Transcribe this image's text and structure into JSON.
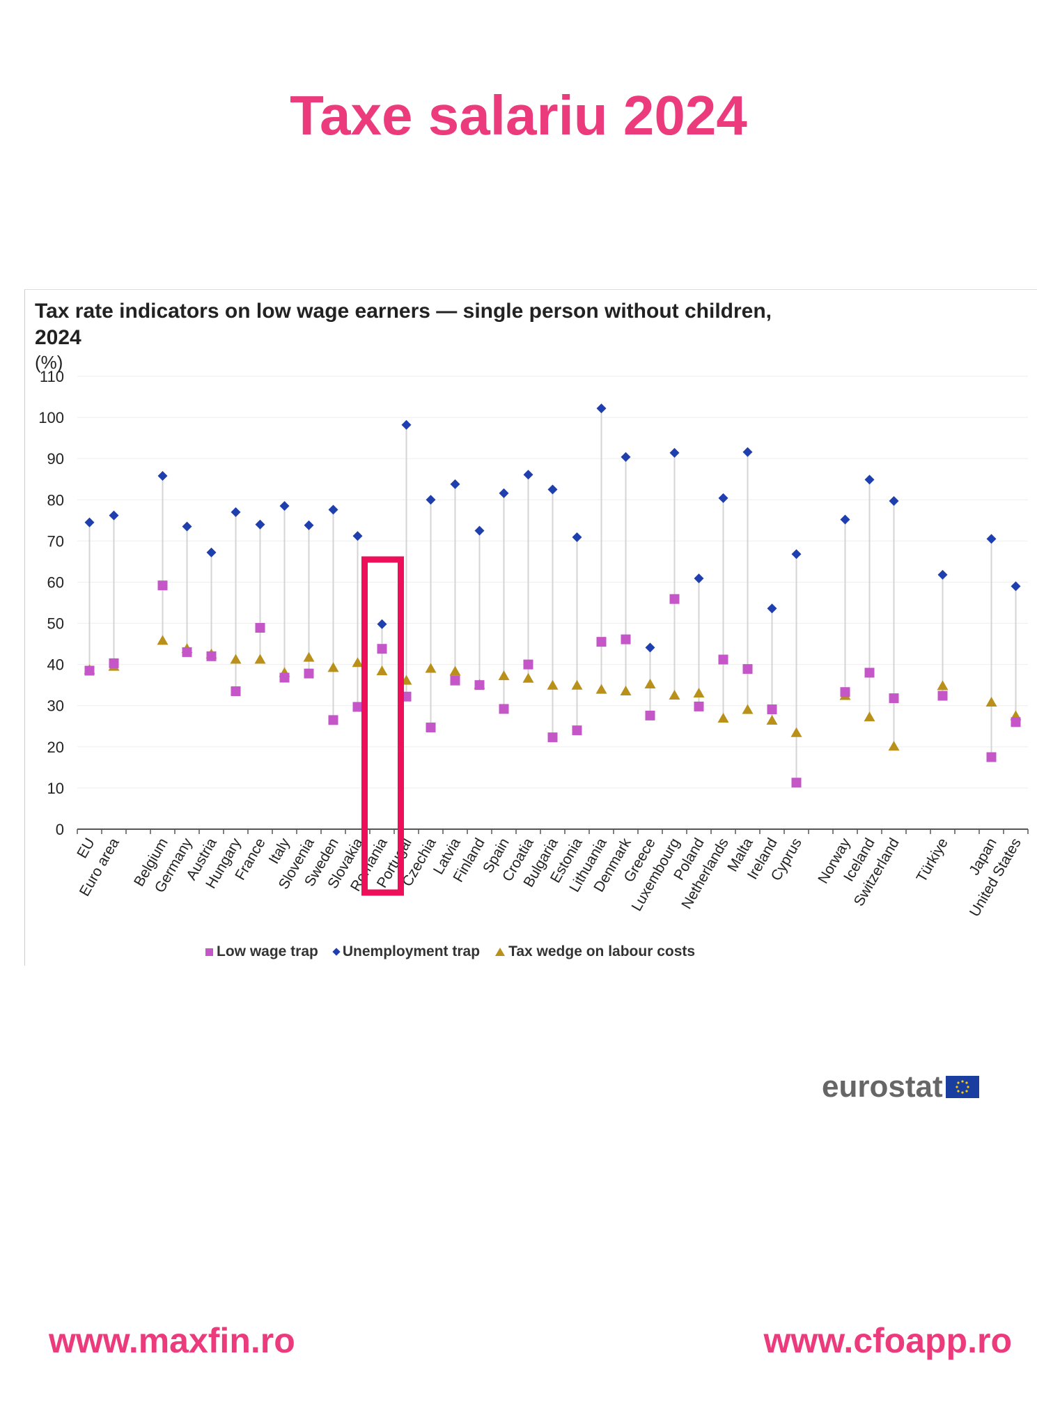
{
  "page_title": "Taxe salariu 2024",
  "footer": {
    "left_url": "www.maxfin.ro",
    "right_url": "www.cfoapp.ro"
  },
  "logo": {
    "text": "eurostat"
  },
  "colors": {
    "accent": "#ec3b7c",
    "highlight": "#ee0f5a",
    "low_wage_trap": "#c456c8",
    "unemployment_trap": "#1f3fae",
    "tax_wedge": "#b8901a"
  },
  "highlighted_category": "Romania",
  "chart_data": {
    "type": "scatter",
    "title": "Tax rate indicators on low wage earners — single person without children, 2024",
    "ylabel": "(%)",
    "xlabel": "",
    "ylim": [
      0,
      110
    ],
    "yticks": [
      0,
      10,
      20,
      30,
      40,
      50,
      60,
      70,
      80,
      90,
      100,
      110
    ],
    "grid": true,
    "legend_position": "bottom",
    "categories": [
      "EU",
      "Euro area",
      "",
      "Belgium",
      "Germany",
      "Austria",
      "Hungary",
      "France",
      "Italy",
      "Slovenia",
      "Sweden",
      "Slovakia",
      "Romania",
      "Portugal",
      "Czechia",
      "Latvia",
      "Finland",
      "Spain",
      "Croatia",
      "Bulgaria",
      "Estonia",
      "Lithuania",
      "Denmark",
      "Greece",
      "Luxembourg",
      "Poland",
      "Netherlands",
      "Malta",
      "Ireland",
      "Cyprus",
      "",
      "Norway",
      "Iceland",
      "Switzerland",
      "",
      "Türkiye",
      "",
      "Japan",
      "United States"
    ],
    "series": [
      {
        "name": "Low wage trap",
        "marker": "square",
        "values": [
          38.5,
          40.3,
          null,
          59.2,
          43.0,
          42.0,
          33.5,
          48.9,
          36.8,
          37.8,
          26.5,
          29.7,
          43.8,
          32.2,
          24.7,
          36.1,
          35.0,
          29.2,
          40.0,
          22.3,
          24.0,
          45.5,
          46.1,
          27.6,
          55.9,
          29.8,
          41.2,
          38.9,
          29.1,
          11.3,
          null,
          33.3,
          38.0,
          31.8,
          null,
          32.4,
          null,
          17.5,
          26.0
        ]
      },
      {
        "name": "Unemployment trap",
        "marker": "diamond",
        "values": [
          74.5,
          76.2,
          null,
          85.8,
          73.5,
          67.2,
          77.0,
          74.0,
          78.5,
          73.8,
          77.6,
          71.2,
          49.8,
          98.2,
          80.0,
          83.8,
          72.5,
          81.6,
          86.1,
          82.5,
          70.9,
          102.2,
          90.4,
          44.1,
          91.4,
          60.9,
          80.4,
          91.6,
          53.6,
          66.8,
          null,
          75.2,
          84.9,
          79.7,
          null,
          61.8,
          null,
          70.5,
          59.0
        ]
      },
      {
        "name": "Tax wedge on labour costs",
        "marker": "triangle",
        "values": [
          38.7,
          39.5,
          null,
          45.8,
          43.8,
          42.5,
          41.2,
          41.2,
          38.0,
          41.7,
          39.2,
          40.4,
          38.4,
          36.1,
          39.0,
          38.3,
          35.1,
          37.2,
          36.6,
          34.9,
          34.9,
          33.9,
          33.5,
          35.2,
          32.5,
          33.0,
          26.9,
          29.0,
          26.4,
          23.4,
          null,
          32.4,
          27.2,
          20.1,
          null,
          34.8,
          null,
          30.8,
          27.5
        ]
      }
    ]
  }
}
